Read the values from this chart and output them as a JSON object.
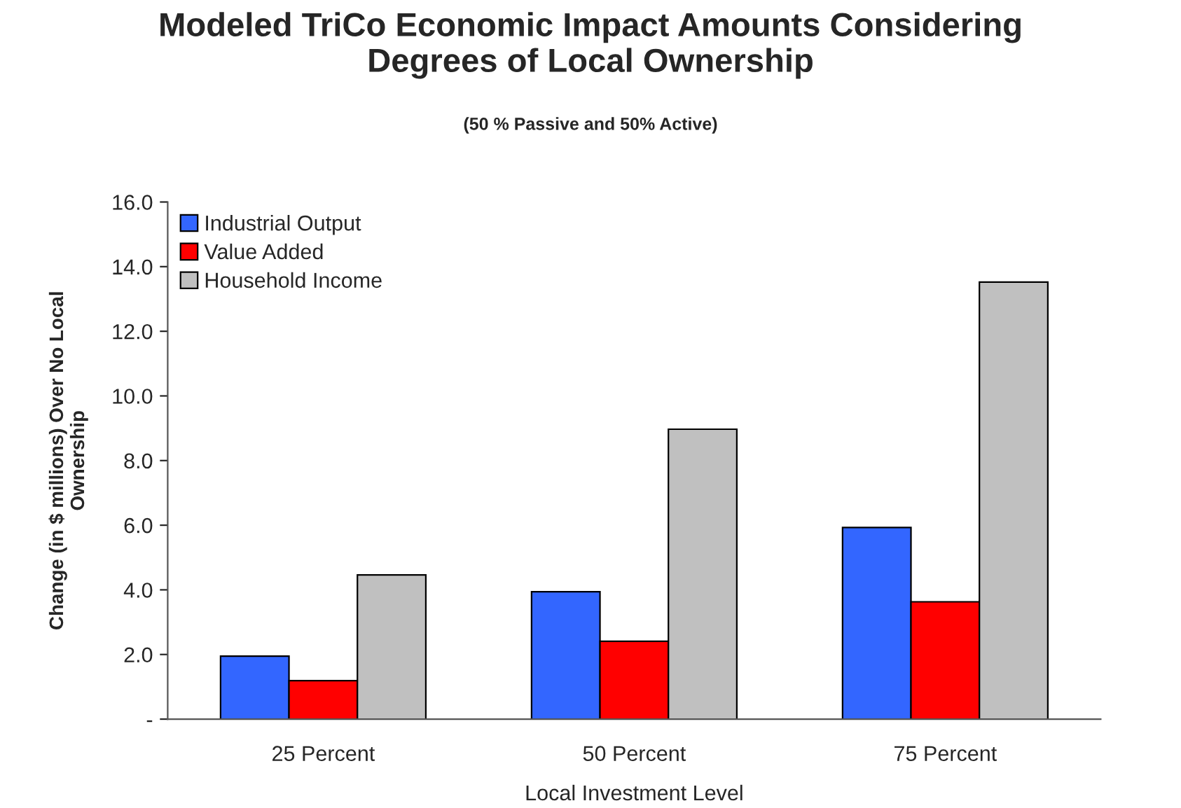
{
  "chart_data": {
    "type": "bar",
    "title": "Modeled TriCo Economic Impact Amounts Considering\nDegrees of Local Ownership",
    "subtitle": "(50 % Passive and 50% Active)",
    "xlabel": "Local Investment Level",
    "ylabel": "Change (in $ millions) Over No Local\nOwnership",
    "categories": [
      "25 Percent",
      "50 Percent",
      "75 Percent"
    ],
    "series": [
      {
        "name": "Industrial Output",
        "color": "#3366ff",
        "values": [
          1.95,
          3.94,
          5.93
        ]
      },
      {
        "name": "Value Added",
        "color": "#ff0000",
        "values": [
          1.19,
          2.41,
          3.63
        ]
      },
      {
        "name": "Household Income",
        "color": "#c0c0c0",
        "values": [
          4.46,
          8.97,
          13.52
        ]
      }
    ],
    "ylim": [
      0,
      16
    ],
    "yticks": [
      {
        "value": 0,
        "label": "-"
      },
      {
        "value": 2,
        "label": "2.0"
      },
      {
        "value": 4,
        "label": "4.0"
      },
      {
        "value": 6,
        "label": "6.0"
      },
      {
        "value": 8,
        "label": "8.0"
      },
      {
        "value": 10,
        "label": "10.0"
      },
      {
        "value": 12,
        "label": "12.0"
      },
      {
        "value": 14,
        "label": "14.0"
      },
      {
        "value": 16,
        "label": "16.0"
      }
    ],
    "grid": false,
    "legend": "top left"
  }
}
